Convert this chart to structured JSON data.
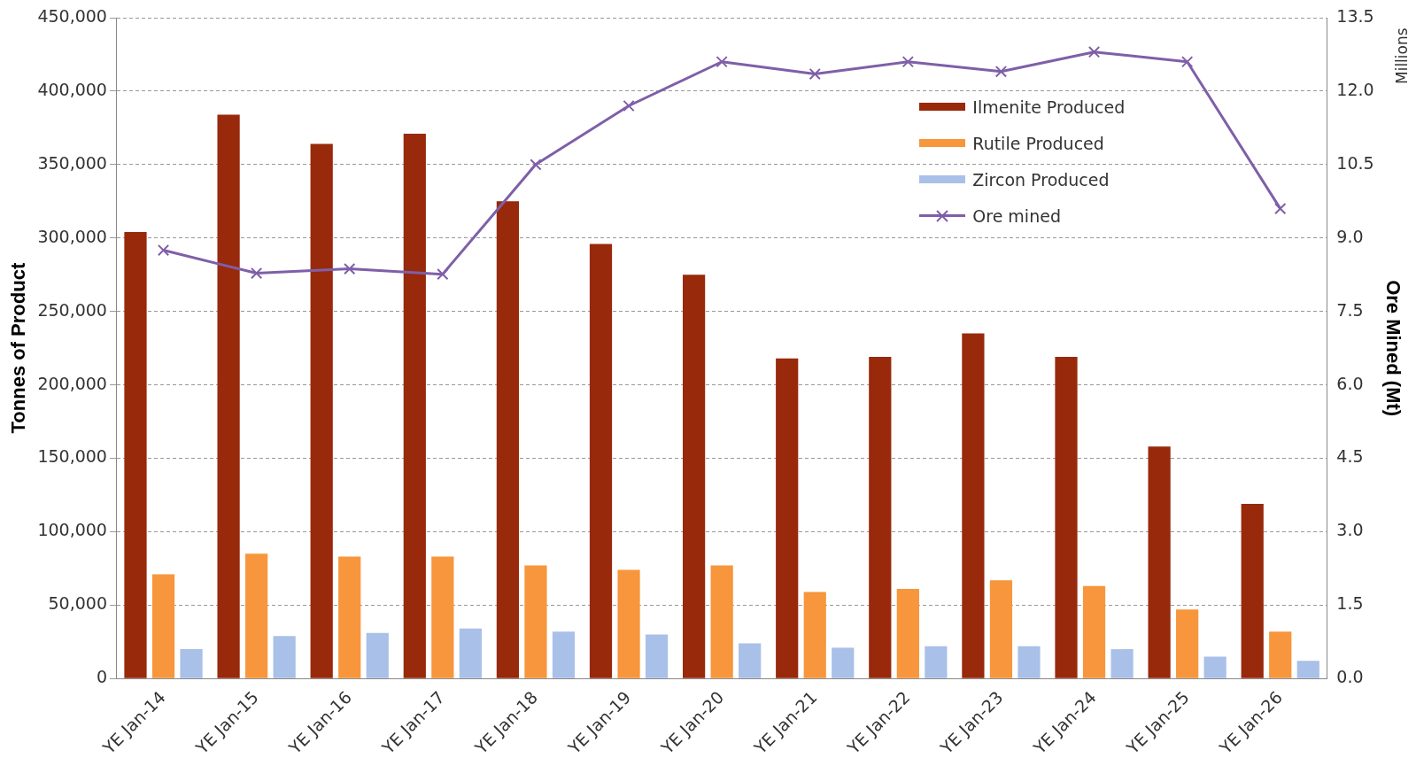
{
  "chart_data": {
    "type": "bar",
    "ylabel": "Tonnes of Product",
    "y2label": "Ore Mined (Mt)",
    "categories": [
      "YE Jan-14",
      "YE Jan-15",
      "YE Jan-16",
      "YE Jan-17",
      "YE Jan-18",
      "YE Jan-19",
      "YE Jan-20",
      "YE Jan-21",
      "YE Jan-22",
      "YE Jan-23",
      "YE Jan-24",
      "YE Jan-25",
      "YE Jan-26"
    ],
    "series": [
      {
        "name": "Ilmenite Produced",
        "color": "#98290b",
        "values": [
          304000,
          384000,
          364000,
          371000,
          325000,
          296000,
          275000,
          218000,
          219000,
          235000,
          219000,
          158000,
          119000
        ]
      },
      {
        "name": "Rutile Produced",
        "color": "#f7963c",
        "values": [
          71000,
          85000,
          83000,
          83000,
          77000,
          74000,
          77000,
          59000,
          61000,
          67000,
          63000,
          47000,
          32000
        ]
      },
      {
        "name": "Zircon Produced",
        "color": "#a9c0e8",
        "values": [
          20000,
          29000,
          31000,
          34000,
          32000,
          30000,
          24000,
          21000,
          22000,
          22000,
          20000,
          15000,
          12000
        ]
      },
      {
        "name": "Ore mined",
        "type": "line",
        "axis": "y2",
        "color": "#7f5fa8",
        "marker": "cross",
        "values": [
          8.75,
          8.28,
          8.37,
          8.26,
          10.5,
          11.7,
          12.6,
          12.35,
          12.6,
          12.4,
          12.8,
          12.6,
          9.6
        ]
      }
    ],
    "ylim": [
      0,
      450000
    ],
    "yticks": [
      {
        "value": 0,
        "label": "0"
      },
      {
        "value": 50000,
        "label": "50,000"
      },
      {
        "value": 100000,
        "label": "100,000"
      },
      {
        "value": 150000,
        "label": "150,000"
      },
      {
        "value": 200000,
        "label": "200,000"
      },
      {
        "value": 250000,
        "label": "250,000"
      },
      {
        "value": 300000,
        "label": "300,000"
      },
      {
        "value": 350000,
        "label": "350,000"
      },
      {
        "value": 400000,
        "label": "400,000"
      },
      {
        "value": 450000,
        "label": "450,000"
      }
    ],
    "y2lim": [
      0,
      13.5
    ],
    "y2ticks": [
      {
        "value": 0,
        "label": "0.0"
      },
      {
        "value": 1.5,
        "label": "1.5"
      },
      {
        "value": 3,
        "label": "3.0"
      },
      {
        "value": 4.5,
        "label": "4.5"
      },
      {
        "value": 6,
        "label": "6.0"
      },
      {
        "value": 7.5,
        "label": "7.5"
      },
      {
        "value": 9,
        "label": "9.0"
      },
      {
        "value": 10.5,
        "label": "10.5"
      },
      {
        "value": 12,
        "label": "12.0"
      },
      {
        "value": 13.5,
        "label": "13.5"
      }
    ],
    "grid": "y",
    "legend": "top right",
    "annotations": [
      "Millions"
    ]
  }
}
